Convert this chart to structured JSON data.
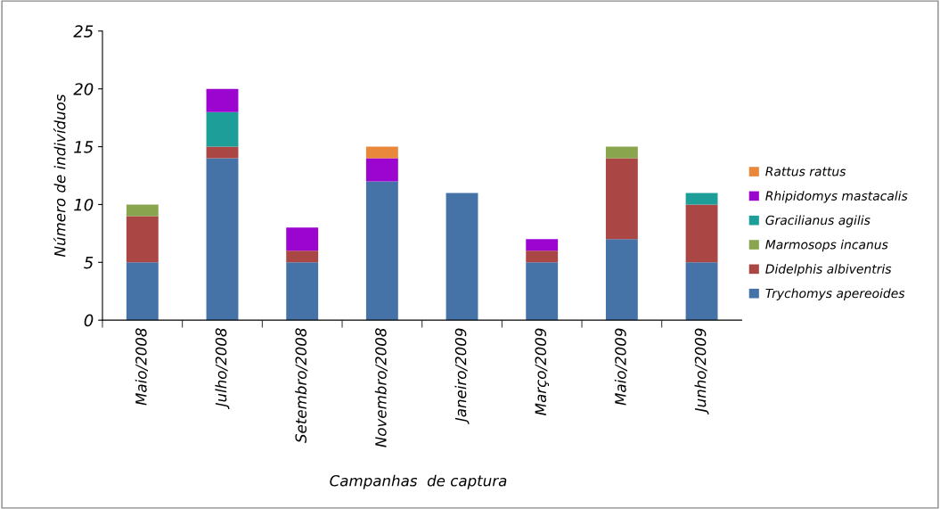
{
  "chart_data": {
    "type": "bar",
    "stacked": true,
    "xlabel": "Campanhas  de captura",
    "ylabel": "Número de indivíduos",
    "categories": [
      "Maio/2008",
      "Julho/2008",
      "Setembro/2008",
      "Novembro/2008",
      "Janeiro/2009",
      "Março/2009",
      "Maio/2009",
      "Junho/2009"
    ],
    "series": [
      {
        "name": "Trychomys apereoides",
        "color": "#4572a7",
        "values": [
          5,
          14,
          5,
          12,
          11,
          5,
          7,
          5
        ]
      },
      {
        "name": "Didelphis albiventris",
        "color": "#aa4643",
        "values": [
          4,
          1,
          1,
          null,
          null,
          1,
          7,
          5
        ]
      },
      {
        "name": "Marmosops incanus",
        "color": "#89a54e",
        "values": [
          1,
          null,
          null,
          null,
          null,
          null,
          1,
          null
        ]
      },
      {
        "name": "Gracilianus agilis",
        "color": "#1e9e98",
        "values": [
          null,
          3,
          null,
          null,
          null,
          null,
          null,
          1
        ]
      },
      {
        "name": "Rhipidomys mastacalis",
        "color": "#9b05cf",
        "values": [
          null,
          2,
          2,
          2,
          null,
          1,
          null,
          null
        ]
      },
      {
        "name": "Rattus rattus",
        "color": "#e9883a",
        "values": [
          null,
          null,
          null,
          1,
          null,
          null,
          null,
          null
        ]
      }
    ],
    "ylim": [
      0,
      25
    ],
    "yticks": [
      0,
      5,
      10,
      15,
      20,
      25
    ],
    "grid": false,
    "legend": "right"
  }
}
